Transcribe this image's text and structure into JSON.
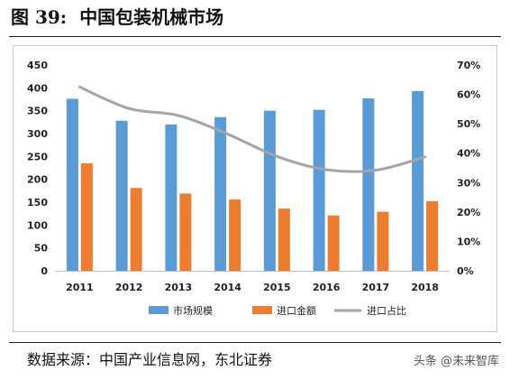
{
  "figure": {
    "number": "图 39:",
    "title": "中国包装机械市场"
  },
  "source": "数据来源：中国产业信息网，东北证券",
  "watermark": "头条 @未来智库",
  "colors": {
    "bar_market": "#5B9BD5",
    "bar_import": "#ED7D31",
    "line_share": "#A5A5A5"
  },
  "chart_data": {
    "type": "bar",
    "title": "",
    "categories": [
      "2011",
      "2012",
      "2013",
      "2014",
      "2015",
      "2016",
      "2017",
      "2018"
    ],
    "series": [
      {
        "name": "市场规模",
        "kind": "bar",
        "axis": "left",
        "values": [
          376,
          328,
          320,
          336,
          350,
          352,
          377,
          393
        ]
      },
      {
        "name": "进口金额",
        "kind": "bar",
        "axis": "left",
        "values": [
          235,
          181,
          169,
          156,
          136,
          121,
          129,
          152
        ]
      },
      {
        "name": "进口占比",
        "kind": "line",
        "axis": "right",
        "values": [
          0.625,
          0.552,
          0.528,
          0.465,
          0.389,
          0.344,
          0.342,
          0.387
        ]
      }
    ],
    "y_left": {
      "min": 0,
      "max": 450,
      "ticks": [
        "0",
        "50",
        "100",
        "150",
        "200",
        "250",
        "300",
        "350",
        "400",
        "450"
      ]
    },
    "y_right": {
      "min": 0,
      "max": 0.7,
      "ticks": [
        "0%",
        "10%",
        "20%",
        "30%",
        "40%",
        "50%",
        "60%",
        "70%"
      ]
    },
    "grid": false,
    "legend": "bottom"
  }
}
